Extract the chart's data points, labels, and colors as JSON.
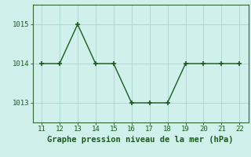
{
  "x": [
    11,
    12,
    13,
    14,
    15,
    16,
    17,
    18,
    19,
    20,
    21,
    22
  ],
  "y": [
    1014,
    1014,
    1015,
    1014,
    1014,
    1013,
    1013,
    1013,
    1014,
    1014,
    1014,
    1014
  ],
  "xlim": [
    10.5,
    22.5
  ],
  "ylim": [
    1012.5,
    1015.5
  ],
  "xticks": [
    11,
    12,
    13,
    14,
    15,
    16,
    17,
    18,
    19,
    20,
    21,
    22
  ],
  "yticks": [
    1013,
    1014,
    1015
  ],
  "xlabel": "Graphe pression niveau de la mer (hPa)",
  "line_color": "#1a5c1a",
  "marker": "+",
  "bg_color": "#cff0eb",
  "grid_color": "#aad4ce",
  "spine_color": "#336633",
  "tick_color": "#1a5c1a",
  "label_color": "#1a5c1a",
  "tick_fontsize": 6.5,
  "xlabel_fontsize": 7.5
}
